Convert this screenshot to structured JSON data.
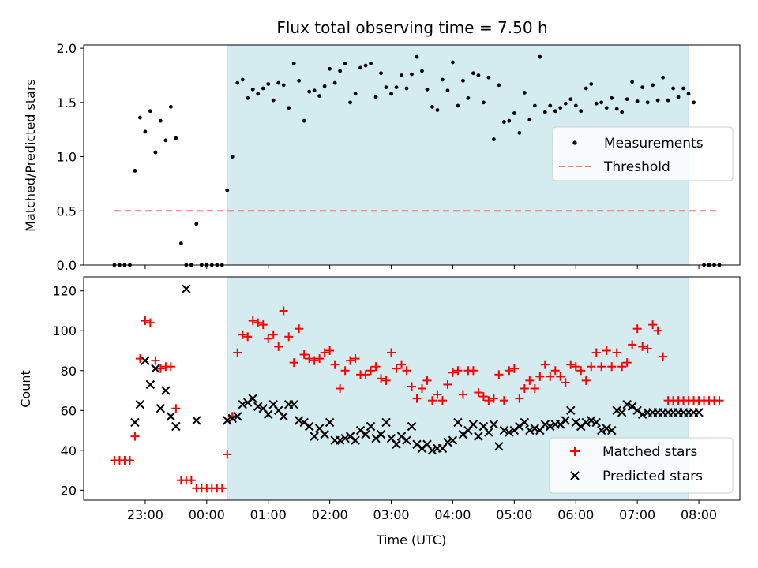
{
  "chart_data": [
    {
      "type": "scatter",
      "title": "Flux total observing time = 7.50 h",
      "xlabel": "",
      "ylabel": "Matched/Predicted stars",
      "xlim": [
        "22:00",
        "08:40"
      ],
      "ylim": [
        0,
        2.03
      ],
      "yticks": [
        0.0,
        0.5,
        1.0,
        1.5,
        2.0
      ],
      "ytick_labels": [
        "0.0",
        "0.5",
        "1.0",
        "1.5",
        "2.0"
      ],
      "observing_window": [
        "00:20",
        "07:50"
      ],
      "window_color": "#d4ebf0",
      "legend": {
        "placement": "right",
        "entries": [
          "Measurements",
          "Threshold"
        ]
      },
      "series": [
        {
          "name": "Measurements",
          "marker": "dot",
          "color": "#000000",
          "x": [
            "22:30",
            "22:35",
            "22:40",
            "22:45",
            "22:50",
            "22:55",
            "23:00",
            "23:05",
            "23:10",
            "23:15",
            "23:20",
            "23:25",
            "23:30",
            "23:35",
            "23:40",
            "23:45",
            "23:50",
            "23:55",
            "24:00",
            "24:05",
            "24:10",
            "24:15",
            "24:20",
            "24:25",
            "24:30",
            "24:35",
            "24:40",
            "24:45",
            "24:50",
            "24:55",
            "25:00",
            "25:05",
            "25:10",
            "25:15",
            "25:20",
            "25:25",
            "25:30",
            "25:35",
            "25:40",
            "25:45",
            "25:50",
            "25:55",
            "26:00",
            "26:05",
            "26:10",
            "26:15",
            "26:20",
            "26:25",
            "26:30",
            "26:35",
            "26:40",
            "26:45",
            "26:50",
            "26:55",
            "27:00",
            "27:05",
            "27:10",
            "27:15",
            "27:20",
            "27:25",
            "27:30",
            "27:35",
            "27:40",
            "27:45",
            "27:50",
            "27:55",
            "28:00",
            "28:05",
            "28:10",
            "28:15",
            "28:20",
            "28:25",
            "28:30",
            "28:35",
            "28:40",
            "28:45",
            "28:50",
            "28:55",
            "29:00",
            "29:05",
            "29:10",
            "29:15",
            "29:20",
            "29:25",
            "29:30",
            "29:35",
            "29:40",
            "29:45",
            "29:50",
            "29:55",
            "30:00",
            "30:05",
            "30:10",
            "30:15",
            "30:20",
            "30:25",
            "30:30",
            "30:35",
            "30:40",
            "30:45",
            "30:50",
            "30:55",
            "31:00",
            "31:05",
            "31:10",
            "31:15",
            "31:20",
            "31:25",
            "31:30",
            "31:35",
            "31:40",
            "31:45",
            "31:50",
            "31:55",
            "32:00",
            "32:05",
            "32:10",
            "32:15",
            "32:20"
          ],
          "y": [
            0,
            0,
            0,
            0,
            0.87,
            1.36,
            1.23,
            1.42,
            1.04,
            1.33,
            1.15,
            1.46,
            1.17,
            0.2,
            0,
            0,
            0.38,
            0,
            0,
            0,
            0,
            0,
            0.69,
            1.0,
            1.68,
            1.71,
            1.54,
            1.62,
            1.58,
            1.63,
            1.67,
            1.52,
            1.68,
            1.66,
            1.45,
            1.86,
            1.7,
            1.33,
            1.6,
            1.61,
            1.56,
            1.65,
            1.81,
            1.68,
            1.79,
            1.86,
            1.5,
            1.58,
            1.82,
            1.84,
            1.86,
            1.55,
            1.77,
            1.64,
            1.58,
            1.64,
            1.75,
            1.63,
            1.76,
            1.92,
            1.79,
            1.62,
            1.46,
            1.43,
            1.71,
            1.61,
            1.87,
            1.47,
            1.7,
            1.54,
            1.77,
            1.75,
            1.5,
            1.73,
            1.16,
            1.66,
            1.32,
            1.33,
            1.4,
            1.22,
            1.59,
            1.34,
            1.47,
            1.92,
            1.41,
            1.47,
            1.42,
            1.45,
            1.49,
            1.53,
            1.47,
            1.42,
            1.63,
            1.67,
            1.49,
            1.5,
            1.45,
            1.54,
            1.44,
            1.41,
            1.53,
            1.69,
            1.51,
            1.64,
            1.5,
            1.66,
            1.52,
            1.73,
            1.52,
            1.63,
            1.55,
            1.63,
            1.58,
            1.5,
            1.11,
            0,
            0,
            0,
            0
          ]
        },
        {
          "name": "Threshold",
          "style": "dashed",
          "color": "#ff7070",
          "x": [
            "22:30",
            "32:20"
          ],
          "y": [
            0.5,
            0.5
          ]
        }
      ]
    },
    {
      "type": "scatter",
      "title": "",
      "xlabel": "Time (UTC)",
      "ylabel": "Count",
      "xlim": [
        "22:00",
        "08:40"
      ],
      "ylim": [
        15,
        127
      ],
      "yticks": [
        20,
        40,
        60,
        80,
        100,
        120
      ],
      "ytick_labels": [
        "20",
        "40",
        "60",
        "80",
        "100",
        "120"
      ],
      "xticks": [
        "23:00",
        "24:00",
        "25:00",
        "26:00",
        "27:00",
        "28:00",
        "29:00",
        "30:00",
        "31:00",
        "32:00"
      ],
      "xtick_labels": [
        "23:00",
        "00:00",
        "01:00",
        "02:00",
        "03:00",
        "04:00",
        "05:00",
        "06:00",
        "07:00",
        "08:00"
      ],
      "observing_window": [
        "00:20",
        "07:50"
      ],
      "window_color": "#d4ebf0",
      "legend": {
        "placement": "bottom-right",
        "entries": [
          "Matched stars",
          "Predicted stars"
        ]
      },
      "series": [
        {
          "name": "Matched stars",
          "marker": "plus",
          "color": "#ff0000",
          "x": [
            "22:30",
            "22:35",
            "22:40",
            "22:45",
            "22:50",
            "22:55",
            "23:00",
            "23:05",
            "23:10",
            "23:15",
            "23:20",
            "23:25",
            "23:30",
            "23:35",
            "23:40",
            "23:45",
            "23:50",
            "23:55",
            "24:00",
            "24:05",
            "24:10",
            "24:15",
            "24:20",
            "24:25",
            "24:30",
            "24:35",
            "24:40",
            "24:45",
            "24:50",
            "24:55",
            "25:00",
            "25:05",
            "25:10",
            "25:15",
            "25:20",
            "25:25",
            "25:30",
            "25:35",
            "25:40",
            "25:45",
            "25:50",
            "25:55",
            "26:00",
            "26:05",
            "26:10",
            "26:15",
            "26:20",
            "26:25",
            "26:30",
            "26:35",
            "26:40",
            "26:45",
            "26:50",
            "26:55",
            "27:00",
            "27:05",
            "27:10",
            "27:15",
            "27:20",
            "27:25",
            "27:30",
            "27:35",
            "27:40",
            "27:45",
            "27:50",
            "27:55",
            "28:00",
            "28:05",
            "28:10",
            "28:15",
            "28:20",
            "28:25",
            "28:30",
            "28:35",
            "28:40",
            "28:45",
            "28:50",
            "28:55",
            "29:00",
            "29:05",
            "29:10",
            "29:15",
            "29:20",
            "29:25",
            "29:30",
            "29:35",
            "29:40",
            "29:45",
            "29:50",
            "29:55",
            "30:00",
            "30:05",
            "30:10",
            "30:15",
            "30:20",
            "30:25",
            "30:30",
            "30:35",
            "30:40",
            "30:45",
            "30:50",
            "30:55",
            "31:00",
            "31:05",
            "31:10",
            "31:15",
            "31:20",
            "31:25",
            "31:30",
            "31:35",
            "31:40",
            "31:45",
            "31:50",
            "31:55",
            "32:00",
            "32:05",
            "32:10",
            "32:15",
            "32:20"
          ],
          "y": [
            35,
            35,
            35,
            35,
            47,
            86,
            105,
            104,
            85,
            81,
            82,
            82,
            61,
            25,
            25,
            25,
            21,
            21,
            21,
            21,
            21,
            21,
            38,
            57,
            89,
            98,
            97,
            105,
            104,
            103,
            96,
            98,
            92,
            110,
            97,
            84,
            101,
            88,
            86,
            85,
            86,
            89,
            90,
            83,
            71,
            80,
            85,
            86,
            78,
            78,
            80,
            82,
            76,
            75,
            89,
            81,
            83,
            80,
            72,
            66,
            71,
            75,
            65,
            68,
            65,
            73,
            79,
            80,
            68,
            80,
            80,
            69,
            67,
            65,
            66,
            78,
            65,
            80,
            81,
            66,
            71,
            75,
            71,
            77,
            83,
            77,
            80,
            77,
            74,
            83,
            82,
            80,
            75,
            82,
            89,
            82,
            90,
            82,
            89,
            82,
            84,
            93,
            101,
            92,
            91,
            103,
            100,
            87,
            65,
            65,
            65,
            65,
            65,
            65,
            65,
            65,
            65,
            65,
            65
          ]
        },
        {
          "name": "Predicted stars",
          "marker": "x",
          "color": "#000000",
          "x": [
            "22:50",
            "22:55",
            "23:00",
            "23:05",
            "23:10",
            "23:15",
            "23:20",
            "23:25",
            "23:30",
            "23:40",
            "23:50",
            "24:20",
            "24:25",
            "24:30",
            "24:35",
            "24:40",
            "24:45",
            "24:50",
            "24:55",
            "25:00",
            "25:05",
            "25:10",
            "25:15",
            "25:20",
            "25:25",
            "25:30",
            "25:35",
            "25:40",
            "25:45",
            "25:50",
            "25:55",
            "26:00",
            "26:05",
            "26:10",
            "26:15",
            "26:20",
            "26:25",
            "26:30",
            "26:35",
            "26:40",
            "26:45",
            "26:50",
            "26:55",
            "27:00",
            "27:05",
            "27:10",
            "27:15",
            "27:20",
            "27:25",
            "27:30",
            "27:35",
            "27:40",
            "27:45",
            "27:50",
            "27:55",
            "28:00",
            "28:05",
            "28:10",
            "28:15",
            "28:20",
            "28:25",
            "28:30",
            "28:35",
            "28:40",
            "28:45",
            "28:50",
            "28:55",
            "29:00",
            "29:05",
            "29:10",
            "29:15",
            "29:20",
            "29:25",
            "29:30",
            "29:35",
            "29:40",
            "29:45",
            "29:50",
            "29:55",
            "30:00",
            "30:05",
            "30:10",
            "30:15",
            "30:20",
            "30:25",
            "30:30",
            "30:35",
            "30:40",
            "30:45",
            "30:50",
            "30:55",
            "31:00",
            "31:05",
            "31:10",
            "31:15",
            "31:20",
            "31:25",
            "31:30",
            "31:35",
            "31:40",
            "31:45",
            "31:50",
            "31:55",
            "32:00"
          ],
          "y": [
            54,
            63,
            85,
            73,
            81,
            61,
            70,
            57,
            52,
            121,
            55,
            55,
            56,
            57,
            63,
            64,
            66,
            62,
            61,
            58,
            63,
            60,
            57,
            63,
            63,
            55,
            54,
            52,
            47,
            51,
            48,
            54,
            45,
            45,
            46,
            47,
            45,
            50,
            48,
            52,
            46,
            48,
            54,
            46,
            43,
            47,
            45,
            52,
            43,
            41,
            43,
            40,
            41,
            41,
            44,
            45,
            54,
            48,
            50,
            53,
            47,
            52,
            49,
            53,
            42,
            50,
            49,
            50,
            52,
            54,
            50,
            51,
            50,
            53,
            52,
            53,
            53,
            55,
            60,
            54,
            52,
            54,
            55,
            54,
            50,
            51,
            50,
            60,
            59,
            63,
            62,
            60,
            58,
            59,
            59,
            59,
            59,
            59,
            59,
            59,
            59,
            59,
            59,
            59
          ]
        }
      ]
    }
  ]
}
